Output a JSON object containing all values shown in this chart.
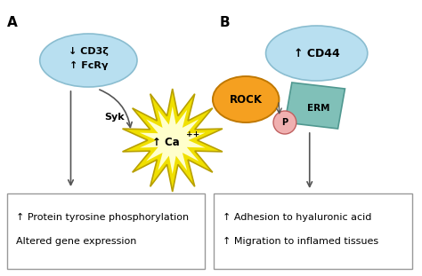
{
  "bg_color": "#ffffff",
  "panel_A_label": "A",
  "panel_B_label": "B",
  "ellipse_A_text_line1": "↓ CD3ζ",
  "ellipse_A_text_line2": "↑ FcRγ",
  "ellipse_A_color": "#b8dff0",
  "ellipse_A_edge": "#8abdd0",
  "syk_label": "Syk",
  "ca_text": "↑ Ca",
  "ca_sup": "++",
  "star_outer_color": "#f0e000",
  "star_inner_color": "#ffffcc",
  "star_edge_color": "#b8a000",
  "box_A_line1": "↑ Protein tyrosine phosphorylation",
  "box_A_line2": "Altered gene expression",
  "box_color": "#ffffff",
  "box_edge": "#999999",
  "ellipse_B_text": "↑ CD44",
  "ellipse_B_color": "#b8dff0",
  "ellipse_B_edge": "#8abdd0",
  "rock_text": "ROCK",
  "rock_color": "#f5a020",
  "rock_edge": "#c07800",
  "erm_text": "ERM",
  "erm_color": "#80c0b8",
  "erm_edge": "#509890",
  "p_text": "P",
  "p_circle_color": "#f0b0b0",
  "p_circle_edge": "#c06060",
  "box_B_line1": "↑ Adhesion to hyaluronic acid",
  "box_B_line2": "↑ Migration to inflamed tissues",
  "arrow_color": "#555555"
}
